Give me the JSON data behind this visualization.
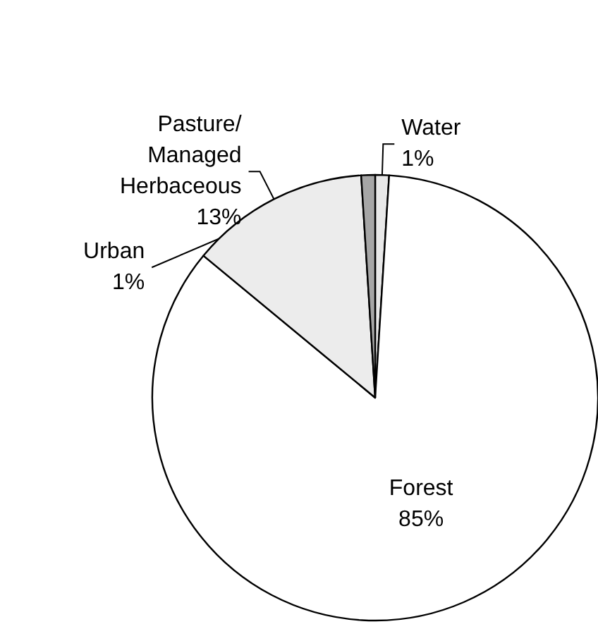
{
  "chart_data": {
    "type": "pie",
    "categories": [
      "Water",
      "Forest",
      "Pasture/ Managed Herbaceous",
      "Urban"
    ],
    "values": [
      1,
      85,
      13,
      1
    ],
    "value_labels": [
      "1%",
      "85%",
      "13%",
      "1%"
    ],
    "colors": [
      "#e8e8e8",
      "#ffffff",
      "#ececec",
      "#a6a6a6"
    ],
    "legend": false
  }
}
